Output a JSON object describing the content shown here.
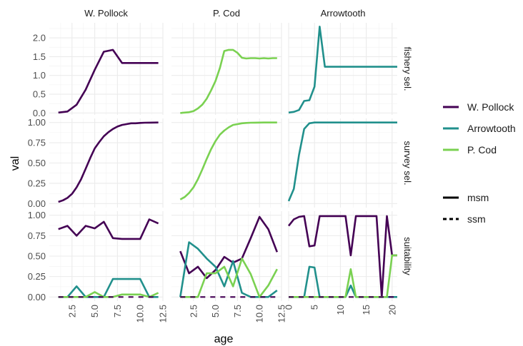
{
  "chart_data": {
    "type": "line",
    "xlabel": "age",
    "ylabel": "val",
    "col_facets": [
      " W. Pollock",
      "P. Cod",
      "Arrowtooth"
    ],
    "col_labels": [
      "W. Pollock",
      "P. Cod",
      "Arrowtooth"
    ],
    "row_facets": [
      "fishery sel.",
      "survey sel.",
      "suitability"
    ],
    "x_ranges": [
      [
        0,
        12.5
      ],
      [
        0,
        12.5
      ],
      [
        0,
        21
      ]
    ],
    "x_ticks": [
      [
        2.5,
        5.0,
        7.5,
        10.0,
        12.5
      ],
      [
        2.5,
        5.0,
        7.5,
        10.0,
        12.5
      ],
      [
        0,
        5,
        10,
        15,
        20
      ]
    ],
    "x_tick_labels": [
      [
        "2.5",
        "5.0",
        "7.5",
        "10.0",
        "12.5"
      ],
      [
        "2.5",
        "5.0",
        "7.5",
        "10.0",
        "12.5"
      ],
      [
        "0",
        "5",
        "10",
        "15",
        "20"
      ]
    ],
    "y_ranges": [
      [
        -0.05,
        2.4
      ],
      [
        -0.05,
        1.05
      ],
      [
        -0.05,
        1.05
      ]
    ],
    "y_ticks": [
      [
        0.0,
        0.5,
        1.0,
        1.5,
        2.0
      ],
      [
        0.0,
        0.25,
        0.5,
        0.75,
        1.0
      ],
      [
        0.0,
        0.25,
        0.5,
        0.75,
        1.0
      ]
    ],
    "y_tick_labels": [
      [
        "0.0",
        "0.5",
        "1.0",
        "1.5",
        "2.0"
      ],
      [
        "0.00",
        "0.25",
        "0.50",
        "0.75",
        "1.00"
      ],
      [
        "0.00",
        "0.25",
        "0.50",
        "0.75",
        "1.00"
      ]
    ],
    "colors": {
      " W. Pollock": "#440154",
      "Arrowtooth": "#21908c",
      "P. Cod": "#7ad151"
    },
    "legend_species": [
      " W. Pollock",
      "Arrowtooth",
      "P. Cod"
    ],
    "legend_linetypes": [
      "msm",
      "ssm"
    ],
    "legend_position": "right",
    "grid": true,
    "series": [
      {
        "row": 0,
        "col": 0,
        "species": " W. Pollock",
        "linetype": "msm",
        "x": [
          1,
          2,
          3,
          4,
          5,
          6,
          7,
          8,
          9,
          10,
          11,
          12
        ],
        "y": [
          0.01,
          0.04,
          0.22,
          0.62,
          1.15,
          1.63,
          1.68,
          1.33,
          1.33,
          1.33,
          1.33,
          1.33
        ]
      },
      {
        "row": 0,
        "col": 1,
        "species": "P. Cod",
        "linetype": "msm",
        "x": [
          1,
          1.5,
          2,
          2.5,
          3,
          3.5,
          4,
          4.5,
          5,
          5.5,
          6,
          6.5,
          7,
          7.5,
          8,
          8.5,
          9,
          9.5,
          10,
          10.5,
          11,
          11.5,
          12
        ],
        "y": [
          0.0,
          0.01,
          0.02,
          0.05,
          0.12,
          0.22,
          0.38,
          0.6,
          0.85,
          1.2,
          1.65,
          1.68,
          1.68,
          1.6,
          1.47,
          1.45,
          1.46,
          1.46,
          1.45,
          1.46,
          1.45,
          1.46,
          1.46
        ]
      },
      {
        "row": 0,
        "col": 2,
        "species": "Arrowtooth",
        "linetype": "msm",
        "x": [
          0,
          1,
          2,
          3,
          4,
          5,
          6,
          7,
          8,
          9,
          10,
          11,
          12,
          13,
          14,
          15,
          16,
          17,
          18,
          19,
          20,
          21
        ],
        "y": [
          0.01,
          0.03,
          0.08,
          0.32,
          0.34,
          0.7,
          2.3,
          1.23,
          1.23,
          1.23,
          1.23,
          1.23,
          1.23,
          1.23,
          1.23,
          1.23,
          1.23,
          1.23,
          1.23,
          1.23,
          1.23,
          1.23
        ]
      },
      {
        "row": 1,
        "col": 0,
        "species": " W. Pollock",
        "linetype": "msm",
        "x": [
          1,
          1.5,
          2,
          2.5,
          3,
          3.5,
          4,
          4.5,
          5,
          5.5,
          6,
          6.5,
          7,
          7.5,
          8,
          8.5,
          9,
          9.5,
          10,
          10.5,
          11,
          11.5,
          12
        ],
        "y": [
          0.02,
          0.04,
          0.07,
          0.12,
          0.2,
          0.3,
          0.43,
          0.56,
          0.68,
          0.76,
          0.83,
          0.88,
          0.92,
          0.95,
          0.97,
          0.98,
          0.99,
          0.99,
          0.995,
          0.997,
          0.998,
          0.999,
          1.0
        ]
      },
      {
        "row": 1,
        "col": 1,
        "species": "P. Cod",
        "linetype": "msm",
        "x": [
          1,
          1.5,
          2,
          2.5,
          3,
          3.5,
          4,
          4.5,
          5,
          5.5,
          6,
          6.5,
          7,
          7.5,
          8,
          8.5,
          9,
          9.5,
          10,
          10.5,
          11,
          11.5,
          12
        ],
        "y": [
          0.05,
          0.08,
          0.13,
          0.2,
          0.3,
          0.42,
          0.55,
          0.67,
          0.77,
          0.85,
          0.9,
          0.94,
          0.97,
          0.98,
          0.99,
          0.995,
          0.997,
          0.998,
          0.999,
          1.0,
          1.0,
          1.0,
          1.0
        ]
      },
      {
        "row": 1,
        "col": 2,
        "species": "Arrowtooth",
        "linetype": "msm",
        "x": [
          0,
          1,
          2,
          3,
          4,
          5,
          6,
          7,
          8,
          9,
          10,
          11,
          12,
          13,
          14,
          15,
          16,
          17,
          18,
          19,
          20,
          21
        ],
        "y": [
          0.03,
          0.18,
          0.6,
          0.92,
          0.99,
          1.0,
          1.0,
          1.0,
          1.0,
          1.0,
          1.0,
          1.0,
          1.0,
          1.0,
          1.0,
          1.0,
          1.0,
          1.0,
          1.0,
          1.0,
          1.0,
          1.0
        ]
      },
      {
        "row": 2,
        "col": 0,
        "species": " W. Pollock",
        "linetype": "msm",
        "x": [
          1,
          2,
          3,
          4,
          5,
          6,
          7,
          8,
          9,
          10,
          11,
          12
        ],
        "y": [
          0.83,
          0.87,
          0.75,
          0.87,
          0.84,
          0.92,
          0.72,
          0.71,
          0.71,
          0.71,
          0.95,
          0.9
        ]
      },
      {
        "row": 2,
        "col": 0,
        "species": "Arrowtooth",
        "linetype": "msm",
        "x": [
          1,
          2,
          3,
          4,
          5,
          6,
          7,
          8,
          9,
          10,
          11,
          12
        ],
        "y": [
          0.0,
          0.0,
          0.13,
          0.0,
          0.0,
          0.0,
          0.22,
          0.22,
          0.22,
          0.22,
          0.0,
          0.0
        ]
      },
      {
        "row": 2,
        "col": 0,
        "species": "P. Cod",
        "linetype": "msm",
        "x": [
          1,
          2,
          3,
          4,
          5,
          6,
          7,
          8,
          9,
          10,
          11,
          12
        ],
        "y": [
          0.0,
          0.0,
          0.0,
          0.0,
          0.06,
          0.0,
          0.0,
          0.03,
          0.03,
          0.03,
          0.0,
          0.05
        ]
      },
      {
        "row": 2,
        "col": 0,
        "species": " W. Pollock",
        "linetype": "ssm",
        "x": [
          1,
          12
        ],
        "y": [
          0.0,
          0.0
        ]
      },
      {
        "row": 2,
        "col": 1,
        "species": " W. Pollock",
        "linetype": "msm",
        "x": [
          1,
          2,
          3,
          4,
          5,
          6,
          7,
          8,
          9,
          10,
          11,
          12
        ],
        "y": [
          0.56,
          0.29,
          0.37,
          0.23,
          0.33,
          0.49,
          0.42,
          0.47,
          0.72,
          0.98,
          0.83,
          0.55
        ]
      },
      {
        "row": 2,
        "col": 1,
        "species": "Arrowtooth",
        "linetype": "msm",
        "x": [
          1,
          2,
          3,
          4,
          5,
          6,
          7,
          8,
          9,
          10,
          11,
          12
        ],
        "y": [
          0.0,
          0.67,
          0.59,
          0.47,
          0.37,
          0.13,
          0.44,
          0.05,
          0.0,
          0.0,
          0.0,
          0.08
        ]
      },
      {
        "row": 2,
        "col": 1,
        "species": "P. Cod",
        "linetype": "msm",
        "x": [
          1,
          2,
          3,
          4,
          5,
          6,
          7,
          8,
          9,
          10,
          11,
          12
        ],
        "y": [
          0.0,
          0.0,
          0.0,
          0.29,
          0.29,
          0.37,
          0.13,
          0.47,
          0.28,
          0.0,
          0.14,
          0.34
        ]
      },
      {
        "row": 2,
        "col": 1,
        "species": " W. Pollock",
        "linetype": "ssm",
        "x": [
          1,
          12
        ],
        "y": [
          0.0,
          0.0
        ]
      },
      {
        "row": 2,
        "col": 2,
        "species": " W. Pollock",
        "linetype": "msm",
        "x": [
          0,
          1,
          2,
          3,
          4,
          5,
          6,
          7,
          8,
          9,
          10,
          11,
          12,
          13,
          14,
          15,
          16,
          17,
          18,
          19,
          20,
          21
        ],
        "y": [
          0.87,
          0.95,
          0.98,
          0.99,
          0.62,
          0.63,
          0.99,
          0.99,
          0.99,
          0.99,
          0.99,
          0.99,
          0.51,
          0.99,
          0.99,
          0.99,
          0.99,
          0.99,
          0.0,
          0.99,
          0.51,
          0.51
        ]
      },
      {
        "row": 2,
        "col": 2,
        "species": "Arrowtooth",
        "linetype": "msm",
        "x": [
          0,
          1,
          2,
          3,
          4,
          5,
          6,
          7,
          8,
          9,
          10,
          11,
          12,
          13,
          14,
          15,
          16,
          17,
          18,
          19,
          20,
          21
        ],
        "y": [
          0.0,
          0.0,
          0.0,
          0.0,
          0.37,
          0.36,
          0.0,
          0.0,
          0.0,
          0.0,
          0.0,
          0.0,
          0.14,
          0.0,
          0.0,
          0.0,
          0.0,
          0.0,
          0.0,
          0.0,
          0.0,
          0.0
        ]
      },
      {
        "row": 2,
        "col": 2,
        "species": "P. Cod",
        "linetype": "msm",
        "x": [
          0,
          1,
          2,
          3,
          4,
          5,
          6,
          7,
          8,
          9,
          10,
          11,
          12,
          13,
          14,
          15,
          16,
          17,
          18,
          19,
          20,
          21
        ],
        "y": [
          0.0,
          0.0,
          0.0,
          0.0,
          0.0,
          0.0,
          0.0,
          0.0,
          0.0,
          0.0,
          0.0,
          0.0,
          0.34,
          0.0,
          0.0,
          0.0,
          0.0,
          0.0,
          0.0,
          0.0,
          0.51,
          0.51
        ]
      },
      {
        "row": 2,
        "col": 2,
        "species": " W. Pollock",
        "linetype": "ssm",
        "x": [
          0,
          21
        ],
        "y": [
          0.0,
          0.0
        ]
      }
    ]
  }
}
